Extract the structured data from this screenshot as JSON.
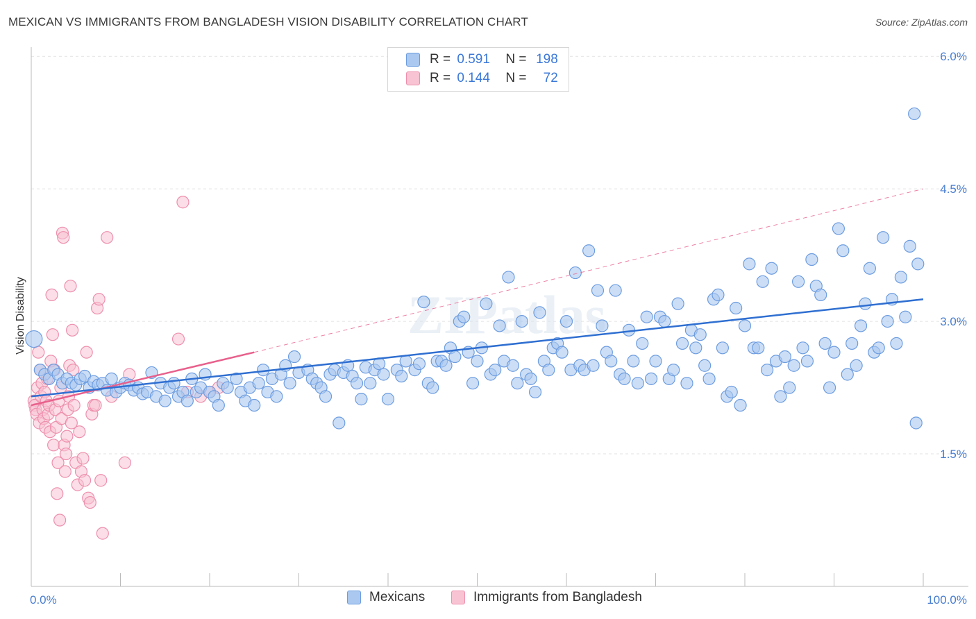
{
  "title": "MEXICAN VS IMMIGRANTS FROM BANGLADESH VISION DISABILITY CORRELATION CHART",
  "source": "Source: ZipAtlas.com",
  "legend": {
    "series1": {
      "r_label": "R =",
      "r_value": "0.591",
      "n_label": "N =",
      "n_value": "198"
    },
    "series2": {
      "r_label": "R =",
      "r_value": "0.144",
      "n_label": "N =",
      "n_value": "72"
    }
  },
  "bottom_legend": {
    "series1": "Mexicans",
    "series2": "Immigrants from Bangladesh"
  },
  "watermark": "ZIPatlas",
  "colors": {
    "mexicans_fill": "#aac8f0",
    "mexicans_stroke": "#6d9de0",
    "mexicans_line": "#2f6fd1",
    "bangladesh_fill": "#f8c3d3",
    "bangladesh_stroke": "#ee8fad",
    "bangladesh_line": "#e8608c",
    "tick_text": "#4a7fd1",
    "grid": "#e2e2e2"
  },
  "chart_data": {
    "type": "scatter",
    "title": "MEXICAN VS IMMIGRANTS FROM BANGLADESH VISION DISABILITY CORRELATION CHART",
    "xlabel": "",
    "ylabel": "Vision Disability",
    "x_tick_labels": [
      "0.0%",
      "100.0%"
    ],
    "y_tick_labels": [
      "1.5%",
      "3.0%",
      "4.5%",
      "6.0%"
    ],
    "y_ticks": [
      1.5,
      3.0,
      4.5,
      6.0
    ],
    "xlim": [
      0,
      100
    ],
    "ylim": [
      0,
      6.2
    ],
    "grid": "horizontal dashed",
    "legend_position": "top-center",
    "series": [
      {
        "name": "Mexicans",
        "R": 0.591,
        "N": 198,
        "trend": {
          "x": [
            0,
            100
          ],
          "y": [
            2.15,
            3.25
          ],
          "style": "solid"
        },
        "points": [
          [
            0.3,
            2.8
          ],
          [
            1,
            2.45
          ],
          [
            1.5,
            2.4
          ],
          [
            2,
            2.35
          ],
          [
            2.5,
            2.45
          ],
          [
            3,
            2.4
          ],
          [
            3.5,
            2.3
          ],
          [
            4,
            2.35
          ],
          [
            4.5,
            2.3
          ],
          [
            5,
            2.28
          ],
          [
            5.5,
            2.35
          ],
          [
            6,
            2.38
          ],
          [
            6.5,
            2.25
          ],
          [
            7,
            2.32
          ],
          [
            7.5,
            2.28
          ],
          [
            8,
            2.3
          ],
          [
            8.5,
            2.22
          ],
          [
            9,
            2.35
          ],
          [
            9.5,
            2.2
          ],
          [
            10,
            2.25
          ],
          [
            10.5,
            2.3
          ],
          [
            11,
            2.28
          ],
          [
            11.5,
            2.22
          ],
          [
            12,
            2.25
          ],
          [
            12.5,
            2.18
          ],
          [
            13,
            2.2
          ],
          [
            13.5,
            2.42
          ],
          [
            14,
            2.15
          ],
          [
            14.5,
            2.3
          ],
          [
            15,
            2.1
          ],
          [
            15.5,
            2.25
          ],
          [
            16,
            2.3
          ],
          [
            16.5,
            2.15
          ],
          [
            17,
            2.2
          ],
          [
            17.5,
            2.1
          ],
          [
            18,
            2.35
          ],
          [
            18.5,
            2.2
          ],
          [
            19,
            2.25
          ],
          [
            19.5,
            2.4
          ],
          [
            20,
            2.2
          ],
          [
            20.5,
            2.15
          ],
          [
            21,
            2.05
          ],
          [
            21.5,
            2.3
          ],
          [
            22,
            2.25
          ],
          [
            23,
            2.35
          ],
          [
            23.5,
            2.2
          ],
          [
            24,
            2.1
          ],
          [
            24.5,
            2.25
          ],
          [
            25,
            2.05
          ],
          [
            25.5,
            2.3
          ],
          [
            26,
            2.45
          ],
          [
            26.5,
            2.2
          ],
          [
            27,
            2.35
          ],
          [
            27.5,
            2.15
          ],
          [
            28,
            2.4
          ],
          [
            28.5,
            2.5
          ],
          [
            29,
            2.3
          ],
          [
            29.5,
            2.6
          ],
          [
            30,
            2.42
          ],
          [
            31,
            2.45
          ],
          [
            31.5,
            2.35
          ],
          [
            32,
            2.3
          ],
          [
            32.5,
            2.25
          ],
          [
            33,
            2.15
          ],
          [
            33.5,
            2.4
          ],
          [
            34,
            2.45
          ],
          [
            34.5,
            1.85
          ],
          [
            35,
            2.42
          ],
          [
            35.5,
            2.5
          ],
          [
            36,
            2.38
          ],
          [
            36.5,
            2.3
          ],
          [
            37,
            2.12
          ],
          [
            37.5,
            2.48
          ],
          [
            38,
            2.3
          ],
          [
            38.5,
            2.45
          ],
          [
            39,
            2.52
          ],
          [
            39.5,
            2.4
          ],
          [
            40,
            2.12
          ],
          [
            41,
            2.45
          ],
          [
            41.5,
            2.38
          ],
          [
            42,
            2.55
          ],
          [
            43,
            2.45
          ],
          [
            43.5,
            2.52
          ],
          [
            44,
            3.22
          ],
          [
            44.5,
            2.3
          ],
          [
            45,
            2.25
          ],
          [
            45.5,
            2.55
          ],
          [
            46,
            2.55
          ],
          [
            46.5,
            2.5
          ],
          [
            47,
            2.7
          ],
          [
            47.5,
            2.6
          ],
          [
            48,
            3.0
          ],
          [
            48.5,
            3.05
          ],
          [
            49,
            2.65
          ],
          [
            49.5,
            2.3
          ],
          [
            50,
            2.55
          ],
          [
            50.5,
            2.7
          ],
          [
            51,
            3.2
          ],
          [
            51.5,
            2.4
          ],
          [
            52,
            2.45
          ],
          [
            52.5,
            2.95
          ],
          [
            53,
            2.55
          ],
          [
            53.5,
            3.5
          ],
          [
            54,
            2.5
          ],
          [
            54.5,
            2.3
          ],
          [
            55,
            3.0
          ],
          [
            55.5,
            2.4
          ],
          [
            56,
            2.35
          ],
          [
            56.5,
            2.2
          ],
          [
            57,
            3.1
          ],
          [
            57.5,
            2.55
          ],
          [
            58,
            2.45
          ],
          [
            58.5,
            2.7
          ],
          [
            59,
            2.75
          ],
          [
            59.5,
            2.65
          ],
          [
            60,
            3.0
          ],
          [
            60.5,
            2.45
          ],
          [
            61,
            3.55
          ],
          [
            61.5,
            2.5
          ],
          [
            62,
            2.45
          ],
          [
            62.5,
            3.8
          ],
          [
            63,
            2.5
          ],
          [
            63.5,
            3.35
          ],
          [
            64,
            2.95
          ],
          [
            64.5,
            2.65
          ],
          [
            65,
            2.55
          ],
          [
            65.5,
            3.35
          ],
          [
            66,
            2.4
          ],
          [
            66.5,
            2.35
          ],
          [
            67,
            2.9
          ],
          [
            67.5,
            2.55
          ],
          [
            68,
            2.3
          ],
          [
            68.5,
            2.75
          ],
          [
            69,
            3.05
          ],
          [
            69.5,
            2.35
          ],
          [
            70,
            2.55
          ],
          [
            70.5,
            3.05
          ],
          [
            71,
            3.0
          ],
          [
            71.5,
            2.35
          ],
          [
            72,
            2.45
          ],
          [
            72.5,
            3.2
          ],
          [
            73,
            2.75
          ],
          [
            73.5,
            2.3
          ],
          [
            74,
            2.9
          ],
          [
            74.5,
            2.7
          ],
          [
            75,
            2.85
          ],
          [
            75.5,
            2.5
          ],
          [
            76,
            2.35
          ],
          [
            76.5,
            3.25
          ],
          [
            77,
            3.3
          ],
          [
            77.5,
            2.7
          ],
          [
            78,
            2.15
          ],
          [
            78.5,
            2.2
          ],
          [
            79,
            3.15
          ],
          [
            79.5,
            2.05
          ],
          [
            80,
            2.95
          ],
          [
            80.5,
            3.65
          ],
          [
            81,
            2.7
          ],
          [
            81.5,
            2.7
          ],
          [
            82,
            3.45
          ],
          [
            82.5,
            2.45
          ],
          [
            83,
            3.6
          ],
          [
            83.5,
            2.55
          ],
          [
            84,
            2.15
          ],
          [
            84.5,
            2.6
          ],
          [
            85,
            2.25
          ],
          [
            85.5,
            2.5
          ],
          [
            86,
            3.45
          ],
          [
            86.5,
            2.7
          ],
          [
            87,
            2.55
          ],
          [
            87.5,
            3.7
          ],
          [
            88,
            3.4
          ],
          [
            88.5,
            3.3
          ],
          [
            89,
            2.75
          ],
          [
            89.5,
            2.25
          ],
          [
            90,
            2.65
          ],
          [
            90.5,
            4.05
          ],
          [
            91,
            3.8
          ],
          [
            91.5,
            2.4
          ],
          [
            92,
            2.75
          ],
          [
            92.5,
            2.5
          ],
          [
            93,
            2.95
          ],
          [
            93.5,
            3.2
          ],
          [
            94,
            3.6
          ],
          [
            94.5,
            2.65
          ],
          [
            95,
            2.7
          ],
          [
            95.5,
            3.95
          ],
          [
            96,
            3.0
          ],
          [
            96.5,
            3.25
          ],
          [
            97,
            2.75
          ],
          [
            97.5,
            3.5
          ],
          [
            98,
            3.05
          ],
          [
            98.5,
            3.85
          ],
          [
            99,
            5.35
          ],
          [
            99.2,
            1.85
          ],
          [
            99.4,
            3.65
          ]
        ]
      },
      {
        "name": "Immigrants from Bangladesh",
        "R": 0.144,
        "N": 72,
        "trend": {
          "x": [
            0,
            25
          ],
          "y": [
            2.05,
            2.65
          ],
          "style": "solid",
          "extended_to": [
            100,
            4.5
          ]
        },
        "points": [
          [
            0.3,
            2.1
          ],
          [
            0.4,
            2.05
          ],
          [
            0.5,
            2.0
          ],
          [
            0.6,
            1.95
          ],
          [
            0.7,
            2.25
          ],
          [
            0.8,
            2.65
          ],
          [
            0.9,
            1.85
          ],
          [
            1.0,
            2.45
          ],
          [
            1.1,
            2.15
          ],
          [
            1.2,
            2.3
          ],
          [
            1.3,
            2.0
          ],
          [
            1.4,
            1.9
          ],
          [
            1.5,
            2.2
          ],
          [
            1.6,
            1.8
          ],
          [
            1.7,
            2.1
          ],
          [
            1.8,
            2.35
          ],
          [
            1.9,
            1.95
          ],
          [
            2.0,
            2.05
          ],
          [
            2.1,
            1.75
          ],
          [
            2.2,
            2.55
          ],
          [
            2.3,
            3.3
          ],
          [
            2.4,
            2.85
          ],
          [
            2.5,
            1.6
          ],
          [
            2.6,
            2.45
          ],
          [
            2.7,
            2.0
          ],
          [
            2.8,
            1.8
          ],
          [
            2.9,
            1.05
          ],
          [
            3.0,
            1.4
          ],
          [
            3.1,
            2.1
          ],
          [
            3.2,
            0.75
          ],
          [
            3.3,
            2.25
          ],
          [
            3.4,
            1.9
          ],
          [
            3.5,
            4.0
          ],
          [
            3.6,
            3.95
          ],
          [
            3.7,
            1.6
          ],
          [
            3.8,
            1.3
          ],
          [
            3.9,
            1.5
          ],
          [
            4.0,
            1.7
          ],
          [
            4.1,
            2.0
          ],
          [
            4.2,
            2.15
          ],
          [
            4.3,
            2.5
          ],
          [
            4.4,
            3.4
          ],
          [
            4.5,
            1.85
          ],
          [
            4.6,
            2.9
          ],
          [
            4.7,
            2.45
          ],
          [
            4.8,
            2.05
          ],
          [
            5.0,
            1.4
          ],
          [
            5.2,
            1.15
          ],
          [
            5.4,
            1.75
          ],
          [
            5.6,
            1.3
          ],
          [
            5.8,
            1.45
          ],
          [
            6.0,
            1.2
          ],
          [
            6.2,
            2.65
          ],
          [
            6.4,
            1.0
          ],
          [
            6.6,
            0.95
          ],
          [
            6.8,
            1.95
          ],
          [
            7.0,
            2.05
          ],
          [
            7.2,
            2.05
          ],
          [
            7.4,
            3.15
          ],
          [
            7.6,
            3.25
          ],
          [
            7.8,
            1.2
          ],
          [
            8.0,
            0.6
          ],
          [
            8.5,
            3.95
          ],
          [
            9.0,
            2.15
          ],
          [
            10.5,
            1.4
          ],
          [
            11.0,
            2.4
          ],
          [
            16.5,
            2.8
          ],
          [
            17.0,
            4.35
          ],
          [
            17.5,
            2.2
          ],
          [
            19.0,
            2.15
          ],
          [
            20.0,
            2.2
          ],
          [
            21.0,
            2.25
          ]
        ]
      }
    ]
  }
}
